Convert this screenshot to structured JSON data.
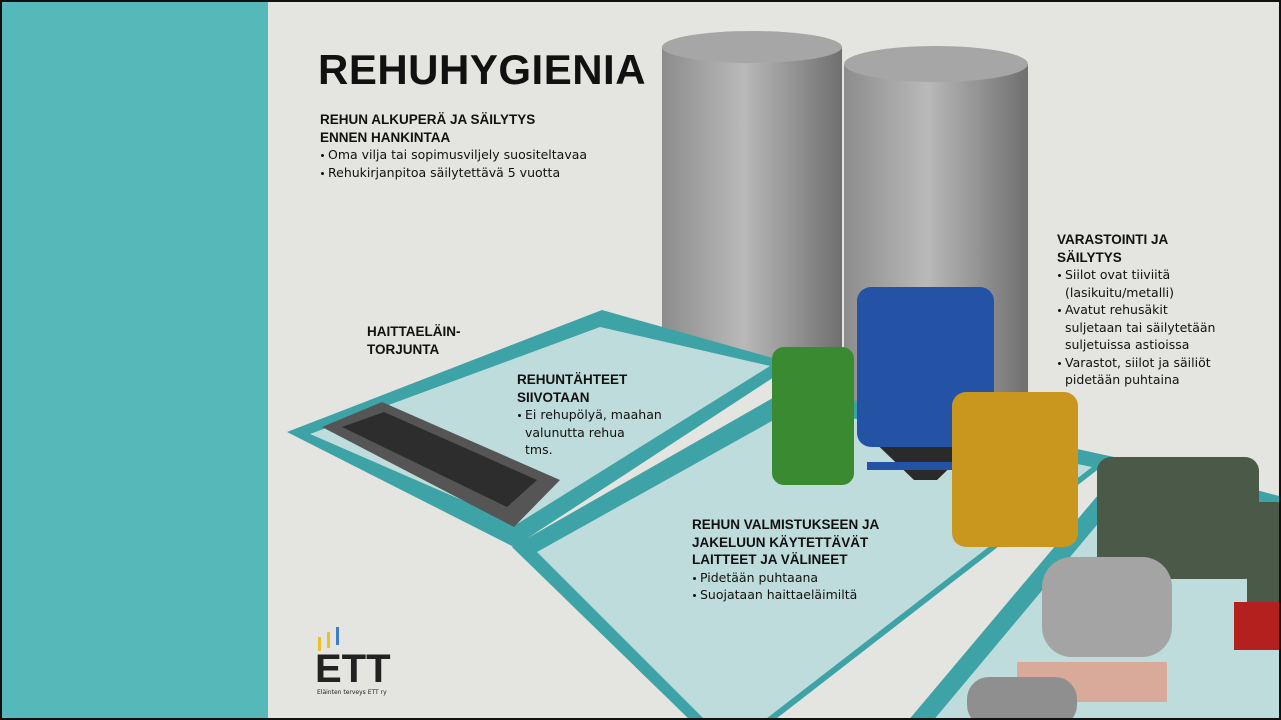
{
  "title": "REHUHYGIENIA",
  "sections": [
    {
      "heading": [
        "REHUN ALKUPERÄ JA SÄILYTYS",
        "ENNEN HANKINTAA"
      ],
      "bullets": [
        [
          "Oma vilja tai sopimusviljely suositeltavaa"
        ],
        [
          "Rehukirjanpitoa säilytettävä 5 vuotta"
        ]
      ]
    },
    {
      "heading": [
        "HAITTAELÄIN-",
        "TORJUNTA"
      ],
      "bullets": []
    },
    {
      "heading": [
        "REHUNTÄHTEET",
        "SIIVOTAAN"
      ],
      "bullets": [
        [
          "Ei rehupölyä, maahan",
          "valunutta rehua",
          "tms."
        ]
      ]
    },
    {
      "heading": [
        "VARASTOINTI JA",
        "SÄILYTYS"
      ],
      "bullets": [
        [
          "Siilot ovat tiiviitä",
          "(lasikuitu/metalli)"
        ],
        [
          "Avatut rehusäkit",
          "suljetaan tai säilytetään",
          "suljetuissa astioissa"
        ],
        [
          "Varastot, siilot ja säiliöt",
          "pidetään puhtaina"
        ]
      ]
    },
    {
      "heading": [
        "REHUN VALMISTUKSEEN JA",
        "JAKELUUN KÄYTETTÄVÄT",
        "LAITTEET JA VÄLINEET"
      ],
      "bullets": [
        [
          "Pidetään puhtaana"
        ],
        [
          "Suojataan haittaeläimiltä"
        ]
      ]
    }
  ],
  "logo": {
    "name": "ETT",
    "subtitle": "Eläinten terveys ETT ry"
  }
}
